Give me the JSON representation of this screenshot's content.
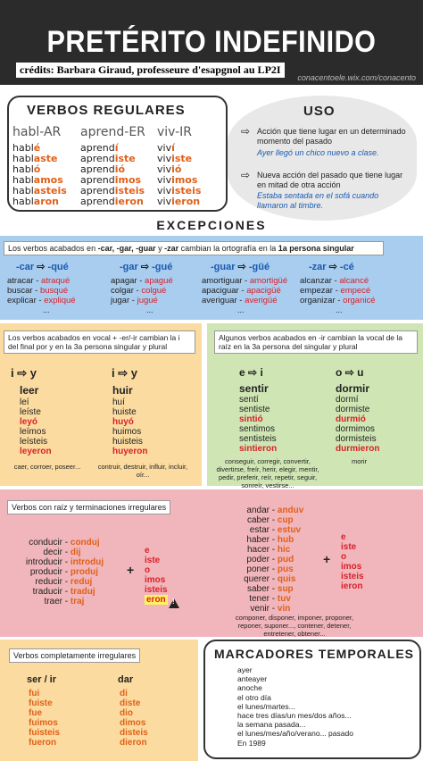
{
  "header": {
    "title": "PRETÉRITO INDEFINIDO",
    "credits": "crédits: Barbara Giraud, professeure d'esapgnol au LP2I",
    "site": "conacentoele.wix.com/conacento"
  },
  "regulares": {
    "title": "VERBOS REGULARES",
    "cols": [
      {
        "head": "habl-AR",
        "stem": "habl",
        "ends": [
          "é",
          "aste",
          "ó",
          "amos",
          "asteis",
          "aron"
        ]
      },
      {
        "head": "aprend-ER",
        "stem": "aprend",
        "ends": [
          "í",
          "iste",
          "ió",
          "imos",
          "isteis",
          "ieron"
        ]
      },
      {
        "head": "viv-IR",
        "stem": "viv",
        "ends": [
          "í",
          "iste",
          "ió",
          "imos",
          "isteis",
          "ieron"
        ]
      }
    ]
  },
  "uso": {
    "title": "USO",
    "item1": "Acción que tiene lugar en un determinado momento del pasado",
    "ex1": "Ayer llegó un chico nuevo a clase.",
    "item2": "Nueva acción del pasado que tiene lugar en mitad de otra acción",
    "ex2": "Estaba sentada en el sofá cuando llamaron al timbre."
  },
  "excepciones": {
    "title": "EXCEPCIONES",
    "ortho": {
      "text_a": "Los verbos acabados en ",
      "text_b": "-car, -gar, -guar",
      "text_c": " y ",
      "text_d": "-zar",
      "text_e": " cambian la ortografía en la ",
      "text_f": "1a persona singular",
      "groups": [
        {
          "from": "-car",
          "to": "-qué",
          "rows": [
            [
              "atracar",
              "atraqué"
            ],
            [
              "buscar",
              "busqué"
            ],
            [
              "explicar",
              "expliqué"
            ]
          ]
        },
        {
          "from": "-gar",
          "to": "-gué",
          "rows": [
            [
              "apagar",
              "apagué"
            ],
            [
              "colgar",
              "colgué"
            ],
            [
              "jugar",
              "jugué"
            ]
          ]
        },
        {
          "from": "-guar",
          "to": "-güé",
          "rows": [
            [
              "amortiguar",
              "amortigüé"
            ],
            [
              "apaciguar",
              "apacigüé"
            ],
            [
              "averiguar",
              "averigüé"
            ]
          ]
        },
        {
          "from": "-zar",
          "to": "-cé",
          "rows": [
            [
              "alcanzar",
              "alcancé"
            ],
            [
              "empezar",
              "empecé"
            ],
            [
              "organizar",
              "organicé"
            ]
          ]
        }
      ],
      "dots": "..."
    },
    "vocal": {
      "text": "Los verbos acabados en vocal + -er/-ir cambian la i del final por y en la 3a persona singular y plural",
      "i1": "i",
      "y1": "y",
      "i2": "i",
      "y2": "y",
      "leer": {
        "head": "leer",
        "forms": [
          "leí",
          "leíste",
          "leyó",
          "leímos",
          "leísteis",
          "leyeron"
        ],
        "more": "caer, corroer, poseer..."
      },
      "huir": {
        "head": "huir",
        "forms": [
          "huí",
          "huiste",
          "huyó",
          "huimos",
          "huisteis",
          "huyeron"
        ],
        "more": "contruir, destruir, influir, incluir, oír..."
      }
    },
    "raiz": {
      "text": "Algunos verbos acabados en -ir cambian la vocal de la raíz en la 3a persona del singular y plural",
      "e1": "e",
      "i1": "i",
      "o1": "o",
      "u1": "u",
      "sentir": {
        "head": "sentir",
        "forms": [
          "sentí",
          "sentiste",
          "sintió",
          "sentimos",
          "sentisteis",
          "sintieron"
        ],
        "more": "conseguir, corregir, convertir, divertirse, freír, herir, elegir, mentir, pedir, preferir, reír, repetir, seguir, sonreír, vestirse..."
      },
      "dormir": {
        "head": "dormir",
        "forms": [
          "dormí",
          "dormiste",
          "durmió",
          "dormimos",
          "dormisteis",
          "durmieron"
        ],
        "more": "morir"
      }
    },
    "irregulares": {
      "text": "Verbos con raíz y terminaciones irregulares",
      "left": [
        [
          "conducir",
          "conduj"
        ],
        [
          "decir",
          "dij"
        ],
        [
          "introducir",
          "introduj"
        ],
        [
          "producir",
          "produj"
        ],
        [
          "reducir",
          "reduj"
        ],
        [
          "traducir",
          "traduj"
        ],
        [
          "traer",
          "traj"
        ]
      ],
      "left_ends": [
        "e",
        "iste",
        "o",
        "imos",
        "isteis",
        "eron"
      ],
      "right": [
        [
          "andar",
          "anduv"
        ],
        [
          "caber",
          "cup"
        ],
        [
          "estar",
          "estuv"
        ],
        [
          "haber",
          "hub"
        ],
        [
          "hacer",
          "hic"
        ],
        [
          "poder",
          "pud"
        ],
        [
          "poner",
          "pus"
        ],
        [
          "querer",
          "quis"
        ],
        [
          "saber",
          "sup"
        ],
        [
          "tener",
          "tuv"
        ],
        [
          "venir",
          "vin"
        ]
      ],
      "right_ends": [
        "e",
        "iste",
        "o",
        "imos",
        "isteis",
        "ieron"
      ],
      "more": "componer, disponer, imponer, proponer, reponer, suponer..., contener, detener, entretener, obtener...",
      "plus": "+",
      "dash": "-"
    },
    "completas": {
      "text": "Verbos completamente irregulares",
      "ser": {
        "head": "ser / ir",
        "forms": [
          "fui",
          "fuiste",
          "fue",
          "fuimos",
          "fuisteis",
          "fueron"
        ]
      },
      "dar": {
        "head": "dar",
        "forms": [
          "di",
          "diste",
          "dio",
          "dimos",
          "disteis",
          "dieron"
        ]
      }
    }
  },
  "marcadores": {
    "title": "MARCADORES TEMPORALES",
    "items": [
      "ayer",
      "anteayer",
      "anoche",
      "el otro día",
      "el lunes/martes...",
      "hace tres días/un mes/dos años...",
      "la semana pasada...",
      "el lunes/mes/año/verano... pasado",
      "En 1989"
    ]
  }
}
